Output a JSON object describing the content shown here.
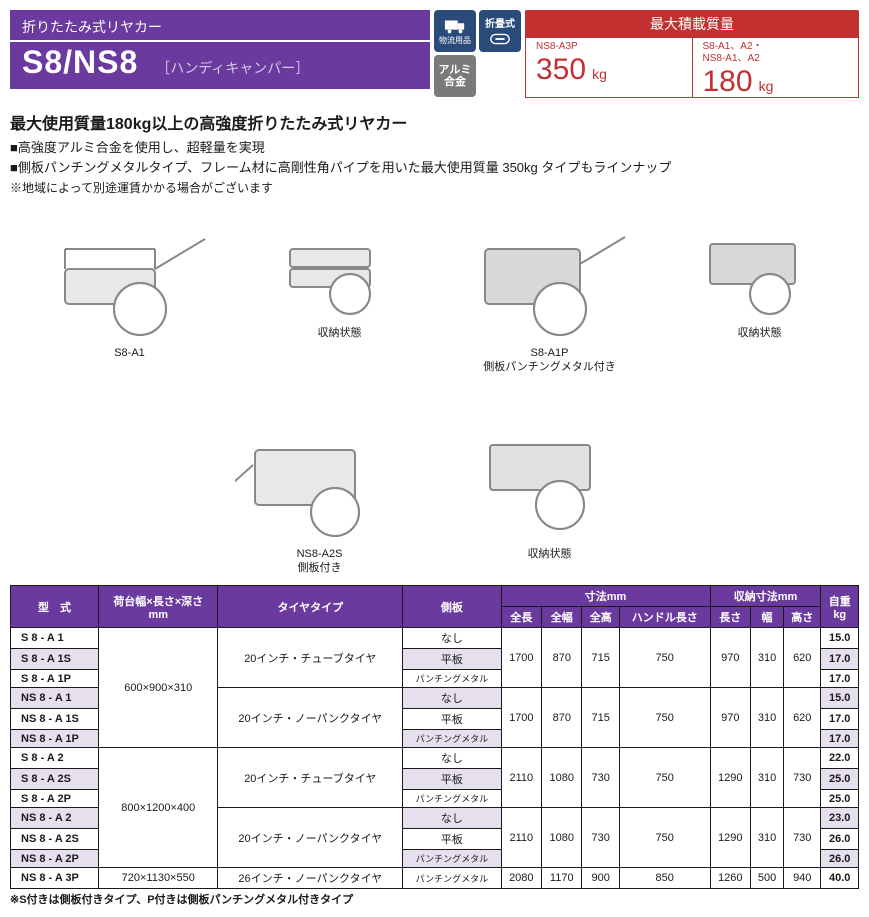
{
  "header": {
    "category": "折りたたみ式リヤカー",
    "model": "S8/NS8",
    "subtitle": "［ハンディキャンパー］"
  },
  "badges": {
    "b1": "物流用品",
    "b2": "折畳式",
    "b3": "アルミ合金"
  },
  "load": {
    "title": "最大積載質量",
    "left_label": "NS8-A3P",
    "left_value": "350",
    "left_unit": "kg",
    "right_label": "S8-A1、A2・\nNS8-A1、A2",
    "right_value": "180",
    "right_unit": "kg"
  },
  "desc": {
    "headline": "最大使用質量180kg以上の高強度折りたたみ式リヤカー",
    "line1": "■高強度アルミ合金を使用し、超軽量を実現",
    "line2": "■側板パンチングメタルタイプ、フレーム材に高剛性角パイプを用いた最大使用質量 350kg タイプもラインナップ",
    "note": "※地域によって別途運賃かかる場合がございます"
  },
  "captions": {
    "c1": "S8-A1",
    "c2": "収納状態",
    "c3": "S8-A1P\n側板パンチングメタル付き",
    "c4": "収納状態",
    "c5": "NS8-A2S\n側板付き",
    "c6": "収納状態"
  },
  "table": {
    "headers": {
      "model": "型　式",
      "platform": "荷台幅×長さ×深さ\nmm",
      "tire": "タイヤタイプ",
      "side": "側板",
      "dims": "寸法mm",
      "dims_len": "全長",
      "dims_w": "全幅",
      "dims_h": "全高",
      "dims_handle": "ハンドル長さ",
      "stored": "収納寸法mm",
      "stored_l": "長さ",
      "stored_w": "幅",
      "stored_h": "高さ",
      "weight": "自重\nkg"
    },
    "rows": [
      {
        "m": "S 8 - A 1",
        "plat": "600×900×310",
        "tire": "20インチ・チューブタイヤ",
        "side": "なし",
        "d": [
          "1700",
          "870",
          "715",
          "750"
        ],
        "s": [
          "970",
          "310",
          "620"
        ],
        "w": "15.0",
        "alt": false,
        "span": {
          "plat": 6,
          "tire": 3,
          "d": 3,
          "s": 3
        }
      },
      {
        "m": "S 8 - A 1S",
        "side": "平板",
        "w": "17.0",
        "alt": true
      },
      {
        "m": "S 8 - A 1P",
        "side": "パンチングメタル",
        "w": "17.0",
        "alt": false
      },
      {
        "m": "NS 8 - A 1",
        "tire": "20インチ・ノーパンクタイヤ",
        "side": "なし",
        "d": [
          "1700",
          "870",
          "715",
          "750"
        ],
        "s": [
          "970",
          "310",
          "620"
        ],
        "w": "15.0",
        "alt": true,
        "span": {
          "tire": 3,
          "d": 3,
          "s": 3
        }
      },
      {
        "m": "NS 8 - A 1S",
        "side": "平板",
        "w": "17.0",
        "alt": false
      },
      {
        "m": "NS 8 - A 1P",
        "side": "パンチングメタル",
        "w": "17.0",
        "alt": true
      },
      {
        "m": "S 8 - A 2",
        "plat": "800×1200×400",
        "tire": "20インチ・チューブタイヤ",
        "side": "なし",
        "d": [
          "2110",
          "1080",
          "730",
          "750"
        ],
        "s": [
          "1290",
          "310",
          "730"
        ],
        "w": "22.0",
        "alt": false,
        "span": {
          "plat": 6,
          "tire": 3,
          "d": 3,
          "s": 3
        }
      },
      {
        "m": "S 8 - A 2S",
        "side": "平板",
        "w": "25.0",
        "alt": true
      },
      {
        "m": "S 8 - A 2P",
        "side": "パンチングメタル",
        "w": "25.0",
        "alt": false
      },
      {
        "m": "NS 8 - A 2",
        "tire": "20インチ・ノーパンクタイヤ",
        "side": "なし",
        "d": [
          "2110",
          "1080",
          "730",
          "750"
        ],
        "s": [
          "1290",
          "310",
          "730"
        ],
        "w": "23.0",
        "alt": true,
        "span": {
          "tire": 3,
          "d": 3,
          "s": 3
        }
      },
      {
        "m": "NS 8 - A 2S",
        "side": "平板",
        "w": "26.0",
        "alt": false
      },
      {
        "m": "NS 8 - A 2P",
        "side": "パンチングメタル",
        "w": "26.0",
        "alt": true
      },
      {
        "m": "NS 8 - A 3P",
        "plat": "720×1130×550",
        "tire": "26インチ・ノーパンクタイヤ",
        "side": "パンチングメタル",
        "d": [
          "2080",
          "1170",
          "900",
          "850"
        ],
        "s": [
          "1260",
          "500",
          "940"
        ],
        "w": "40.0",
        "alt": false,
        "span": {
          "plat": 1,
          "tire": 1,
          "d": 1,
          "s": 1
        }
      }
    ],
    "note": "※S付きは側板付きタイプ、P付きは側板パンチングメタル付きタイプ"
  }
}
